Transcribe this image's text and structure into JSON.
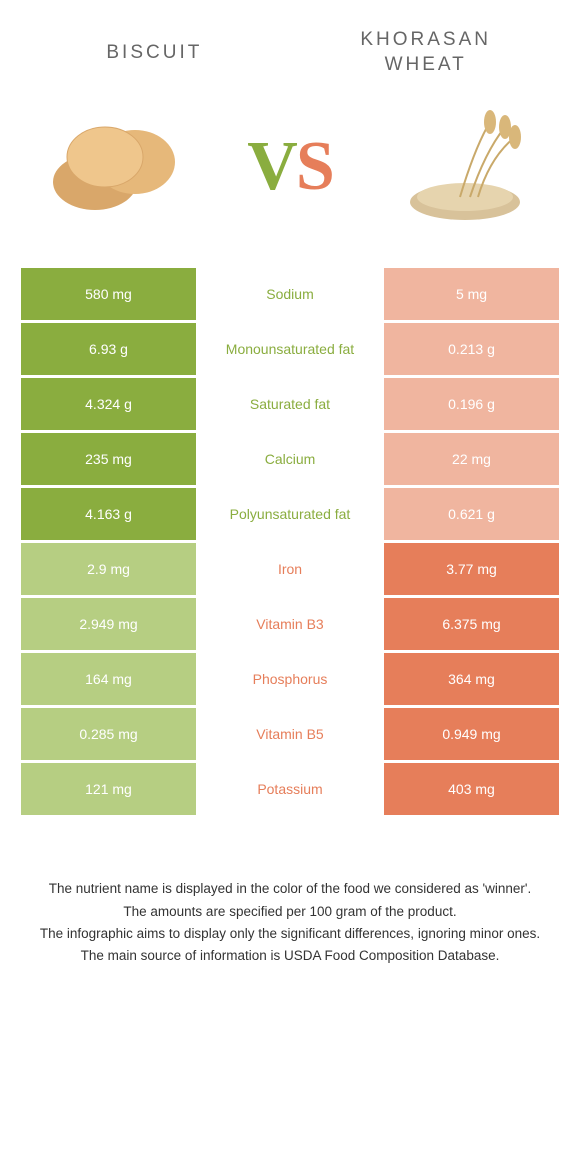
{
  "header": {
    "left_title": "BISCUIT",
    "right_title": "KHORASAN WHEAT"
  },
  "vs": {
    "v": "V",
    "s": "S"
  },
  "colors": {
    "green_strong": "#8aad3f",
    "green_pale": "#b6ce82",
    "orange_strong": "#e67e5a",
    "orange_pale": "#f0b59f",
    "background": "#ffffff",
    "label_text": "#666666"
  },
  "rows": [
    {
      "label": "Sodium",
      "left": "580 mg",
      "right": "5 mg",
      "winner": "left"
    },
    {
      "label": "Monounsaturated fat",
      "left": "6.93 g",
      "right": "0.213 g",
      "winner": "left"
    },
    {
      "label": "Saturated fat",
      "left": "4.324 g",
      "right": "0.196 g",
      "winner": "left"
    },
    {
      "label": "Calcium",
      "left": "235 mg",
      "right": "22 mg",
      "winner": "left"
    },
    {
      "label": "Polyunsaturated fat",
      "left": "4.163 g",
      "right": "0.621 g",
      "winner": "left"
    },
    {
      "label": "Iron",
      "left": "2.9 mg",
      "right": "3.77 mg",
      "winner": "right"
    },
    {
      "label": "Vitamin B3",
      "left": "2.949 mg",
      "right": "6.375 mg",
      "winner": "right"
    },
    {
      "label": "Phosphorus",
      "left": "164 mg",
      "right": "364 mg",
      "winner": "right"
    },
    {
      "label": "Vitamin B5",
      "left": "0.285 mg",
      "right": "0.949 mg",
      "winner": "right"
    },
    {
      "label": "Potassium",
      "left": "121 mg",
      "right": "403 mg",
      "winner": "right"
    }
  ],
  "footnotes": [
    "The nutrient name is displayed in the color of the food we considered as 'winner'.",
    "The amounts are specified per 100 gram of the product.",
    "The infographic aims to display only the significant differences, ignoring minor ones.",
    "The main source of information is USDA Food Composition Database."
  ]
}
